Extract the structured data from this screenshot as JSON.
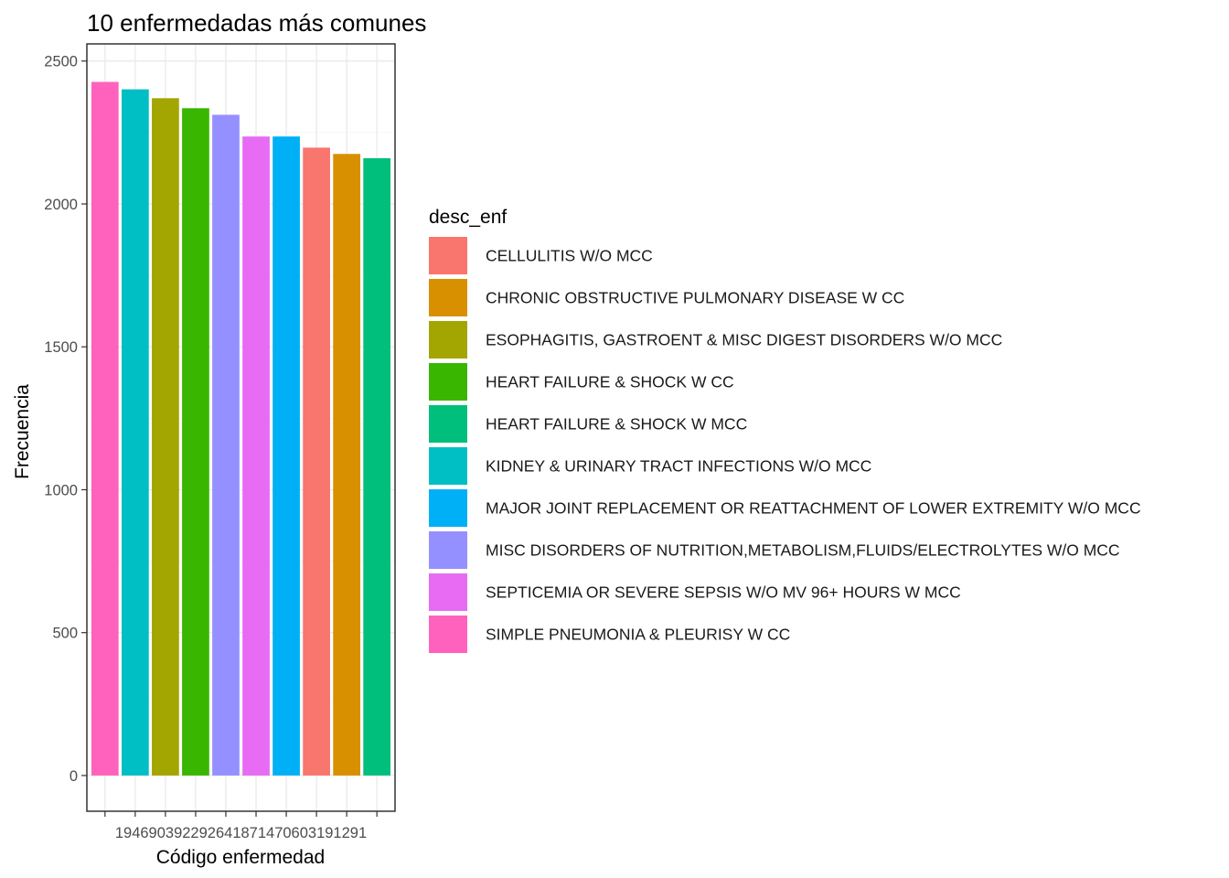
{
  "chart_data": {
    "type": "bar",
    "title": "10 enfermedadas más comunes",
    "xlabel": "Código enfermedad",
    "ylabel": "Frecuencia",
    "ylim": [
      -125,
      2560
    ],
    "y_ticks": [
      0,
      500,
      1000,
      1500,
      2000,
      2500
    ],
    "x_tick_label": "194690392292641871470603191291",
    "grid": true,
    "legend_position": "right",
    "legend_title": "desc_enf",
    "legend": [
      {
        "label": "CELLULITIS W/O MCC",
        "color": "#F8766D"
      },
      {
        "label": "CHRONIC OBSTRUCTIVE PULMONARY DISEASE W CC",
        "color": "#D89000"
      },
      {
        "label": "ESOPHAGITIS, GASTROENT & MISC DIGEST DISORDERS W/O MCC",
        "color": "#A3A500"
      },
      {
        "label": "HEART FAILURE & SHOCK W CC",
        "color": "#39B600"
      },
      {
        "label": "HEART FAILURE & SHOCK W MCC",
        "color": "#00BF7D"
      },
      {
        "label": "KIDNEY & URINARY TRACT INFECTIONS W/O MCC",
        "color": "#00BFC4"
      },
      {
        "label": "MAJOR JOINT REPLACEMENT OR REATTACHMENT OF LOWER EXTREMITY W/O MCC",
        "color": "#00B0F6"
      },
      {
        "label": "MISC DISORDERS OF NUTRITION,METABOLISM,FLUIDS/ELECTROLYTES W/O MCC",
        "color": "#9590FF"
      },
      {
        "label": "SEPTICEMIA OR SEVERE SEPSIS W/O MV 96+ HOURS W MCC",
        "color": "#E76BF3"
      },
      {
        "label": "SIMPLE PNEUMONIA & PLEURISY W CC",
        "color": "#FF62BC"
      }
    ],
    "bars": [
      {
        "value": 2427,
        "color": "#FF62BC"
      },
      {
        "value": 2401,
        "color": "#00BFC4"
      },
      {
        "value": 2370,
        "color": "#A3A500"
      },
      {
        "value": 2335,
        "color": "#39B600"
      },
      {
        "value": 2312,
        "color": "#9590FF"
      },
      {
        "value": 2236,
        "color": "#E76BF3"
      },
      {
        "value": 2236,
        "color": "#00B0F6"
      },
      {
        "value": 2197,
        "color": "#F8766D"
      },
      {
        "value": 2175,
        "color": "#D89000"
      },
      {
        "value": 2160,
        "color": "#00BF7D"
      }
    ]
  }
}
